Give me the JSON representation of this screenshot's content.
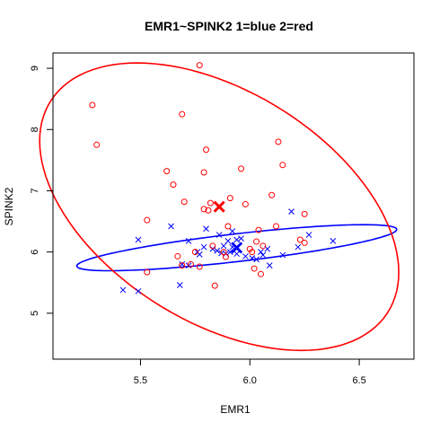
{
  "chart_data": {
    "type": "scatter",
    "title": "EMR1~SPINK2 1=blue 2=red",
    "xlabel": "EMR1",
    "ylabel": "SPINK2",
    "xlim": [
      5.1,
      6.75
    ],
    "ylim": [
      4.25,
      9.25
    ],
    "x_ticks": [
      5.5,
      6.0,
      6.5
    ],
    "x_tick_labels": [
      "5.5",
      "6.0",
      "6.5"
    ],
    "y_ticks": [
      5,
      6,
      7,
      8,
      9
    ],
    "y_tick_labels": [
      "5",
      "6",
      "7",
      "8",
      "9"
    ],
    "grid": false,
    "series": [
      {
        "group": "1",
        "color": "#0000ff",
        "marker": "x",
        "points": [
          [
            5.42,
            5.38
          ],
          [
            5.49,
            6.2
          ],
          [
            5.49,
            5.36
          ],
          [
            5.64,
            6.42
          ],
          [
            5.68,
            5.46
          ],
          [
            5.69,
            5.8
          ],
          [
            5.72,
            5.78
          ],
          [
            5.72,
            6.18
          ],
          [
            5.76,
            6.0
          ],
          [
            5.77,
            5.96
          ],
          [
            5.79,
            6.08
          ],
          [
            5.8,
            6.38
          ],
          [
            5.83,
            6.05
          ],
          [
            5.85,
            6.02
          ],
          [
            5.86,
            6.28
          ],
          [
            5.87,
            5.98
          ],
          [
            5.88,
            6.1
          ],
          [
            5.89,
            5.97
          ],
          [
            5.9,
            6.18
          ],
          [
            5.91,
            6.0
          ],
          [
            5.92,
            6.08
          ],
          [
            5.92,
            6.34
          ],
          [
            5.94,
            5.97
          ],
          [
            5.94,
            6.2
          ],
          [
            5.96,
            6.22
          ],
          [
            5.98,
            5.93
          ],
          [
            6.01,
            5.9
          ],
          [
            6.03,
            5.88
          ],
          [
            6.05,
            6.0
          ],
          [
            6.06,
            5.95
          ],
          [
            6.08,
            6.05
          ],
          [
            6.09,
            5.78
          ],
          [
            6.15,
            5.95
          ],
          [
            6.19,
            6.66
          ],
          [
            6.22,
            6.08
          ],
          [
            6.27,
            6.28
          ],
          [
            6.38,
            6.18
          ]
        ],
        "centroid": [
          5.94,
          6.07
        ],
        "ellipse": {
          "center": [
            5.94,
            6.07
          ],
          "rx": 0.795,
          "ry": 0.21,
          "angle_deg": 24
        }
      },
      {
        "group": "2",
        "color": "#ff0000",
        "marker": "o",
        "points": [
          [
            5.28,
            8.4
          ],
          [
            5.3,
            7.75
          ],
          [
            5.53,
            6.52
          ],
          [
            5.53,
            5.67
          ],
          [
            5.62,
            7.32
          ],
          [
            5.65,
            7.1
          ],
          [
            5.67,
            5.93
          ],
          [
            5.69,
            8.25
          ],
          [
            5.7,
            6.82
          ],
          [
            5.69,
            5.78
          ],
          [
            5.73,
            5.8
          ],
          [
            5.75,
            6.0
          ],
          [
            5.77,
            9.05
          ],
          [
            5.77,
            5.76
          ],
          [
            5.79,
            6.7
          ],
          [
            5.79,
            7.3
          ],
          [
            5.8,
            7.67
          ],
          [
            5.81,
            6.68
          ],
          [
            5.82,
            6.8
          ],
          [
            5.83,
            6.1
          ],
          [
            5.84,
            5.45
          ],
          [
            5.88,
            6.0
          ],
          [
            5.89,
            5.92
          ],
          [
            5.9,
            6.42
          ],
          [
            5.91,
            6.88
          ],
          [
            5.96,
            7.36
          ],
          [
            5.98,
            6.78
          ],
          [
            6.0,
            6.05
          ],
          [
            6.01,
            6.0
          ],
          [
            6.02,
            5.73
          ],
          [
            6.03,
            6.17
          ],
          [
            6.04,
            6.36
          ],
          [
            6.05,
            5.64
          ],
          [
            6.06,
            6.1
          ],
          [
            6.1,
            6.93
          ],
          [
            6.12,
            6.42
          ],
          [
            6.13,
            7.8
          ],
          [
            6.15,
            7.42
          ],
          [
            6.23,
            6.2
          ],
          [
            6.25,
            6.15
          ],
          [
            6.25,
            6.62
          ]
        ],
        "centroid": [
          5.86,
          6.74
        ],
        "ellipse": {
          "center": [
            5.86,
            6.74
          ],
          "rx": 0.72,
          "ry": 2.38,
          "angle_deg": 10
        }
      }
    ]
  }
}
